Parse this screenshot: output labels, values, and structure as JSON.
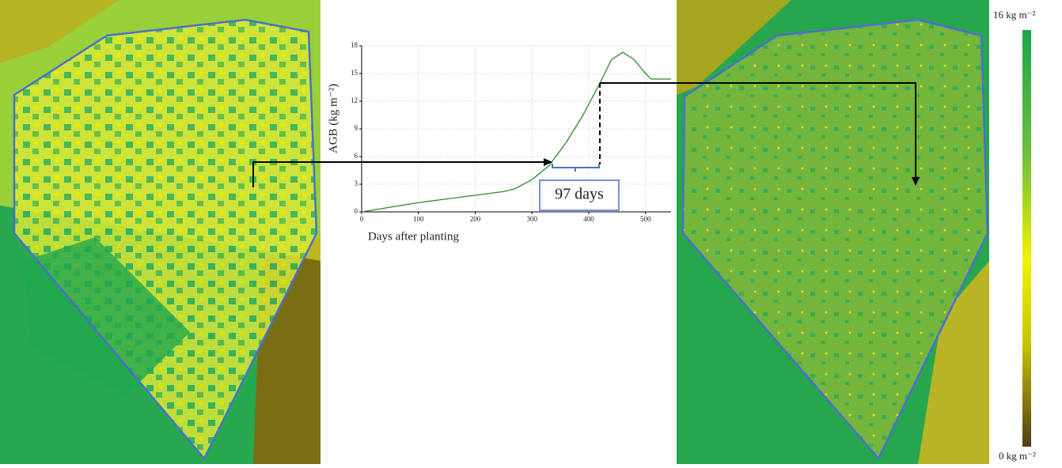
{
  "chart_data": {
    "type": "line",
    "x_label": "Days after planting",
    "y_label": "AGB (kg m⁻²)",
    "x": [
      0,
      50,
      100,
      150,
      200,
      250,
      270,
      300,
      330,
      360,
      390,
      420,
      440,
      460,
      480,
      500,
      510,
      520,
      545
    ],
    "series": [
      {
        "color": "#2e8b2e",
        "values": [
          0,
          0.5,
          1.0,
          1.4,
          1.8,
          2.2,
          2.5,
          3.5,
          5,
          7.5,
          10.5,
          14,
          16.5,
          17.3,
          16.5,
          15,
          14.4,
          14.4,
          14.4
        ]
      }
    ],
    "xlim": [
      0,
      545
    ],
    "ylim": [
      0,
      18
    ],
    "xticks": [
      0,
      100,
      200,
      300,
      400,
      500
    ],
    "yticks": [
      0,
      3,
      6,
      9,
      12,
      15,
      18
    ],
    "grid": true,
    "annotation": "97 days"
  },
  "colorbar": {
    "max_label": "16 kg m⁻²",
    "min_label": "0 kg m⁻²"
  }
}
